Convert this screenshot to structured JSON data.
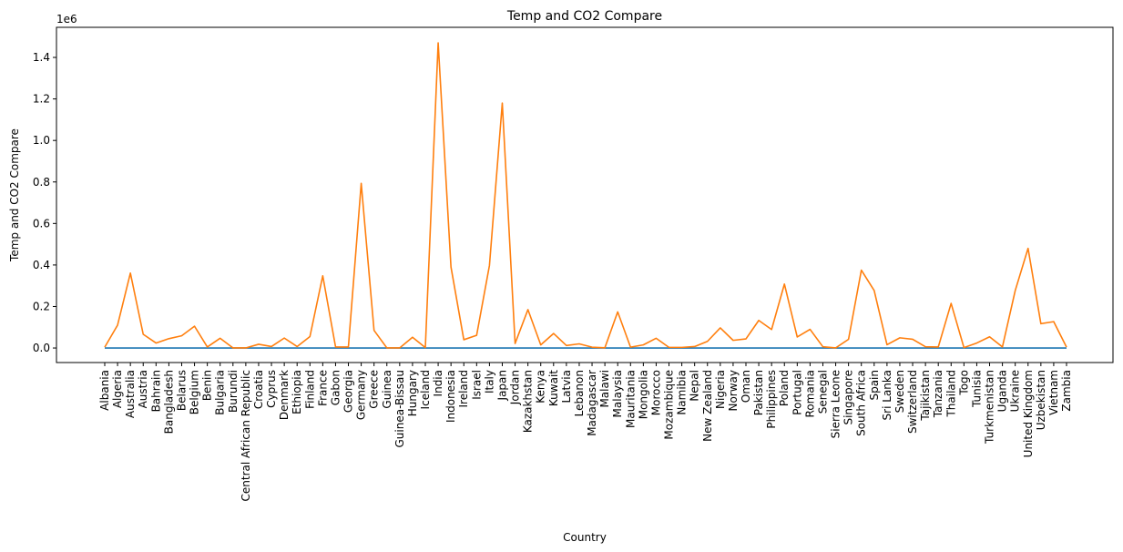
{
  "chart_data": {
    "type": "line",
    "title": "Temp and CO2 Compare",
    "xlabel": "Country",
    "ylabel": "Temp and CO2 Compare",
    "y_offset_label": "1e6",
    "ylim": [
      -70000,
      1545000
    ],
    "yticks": [
      0.0,
      0.2,
      0.4,
      0.6,
      0.8,
      1.0,
      1.2,
      1.4
    ],
    "ytick_labels": [
      "0.0",
      "0.2",
      "0.4",
      "0.6",
      "0.8",
      "1.0",
      "1.2",
      "1.4"
    ],
    "grid": false,
    "categories": [
      "Albania",
      "Algeria",
      "Australia",
      "Austria",
      "Bahrain",
      "Bangladesh",
      "Belarus",
      "Belgium",
      "Benin",
      "Bulgaria",
      "Burundi",
      "Central African Republic",
      "Croatia",
      "Cyprus",
      "Denmark",
      "Ethiopia",
      "Finland",
      "France",
      "Gabon",
      "Georgia",
      "Germany",
      "Greece",
      "Guinea",
      "Guinea-Bissau",
      "Hungary",
      "Iceland",
      "India",
      "Indonesia",
      "Ireland",
      "Israel",
      "Italy",
      "Japan",
      "Jordan",
      "Kazakhstan",
      "Kenya",
      "Kuwait",
      "Latvia",
      "Lebanon",
      "Madagascar",
      "Malawi",
      "Malaysia",
      "Mauritania",
      "Mongolia",
      "Morocco",
      "Mozambique",
      "Namibia",
      "Nepal",
      "New Zealand",
      "Nigeria",
      "Norway",
      "Oman",
      "Pakistan",
      "Philippines",
      "Poland",
      "Portugal",
      "Romania",
      "Senegal",
      "Sierra Leone",
      "Singapore",
      "South Africa",
      "Spain",
      "Sri Lanka",
      "Sweden",
      "Switzerland",
      "Tajikistan",
      "Tanzania",
      "Thailand",
      "Togo",
      "Tunisia",
      "Turkmenistan",
      "Uganda",
      "Ukraine",
      "United Kingdom",
      "Uzbekistan",
      "Vietnam",
      "Zambia"
    ],
    "series": [
      {
        "color": "#1f77b4",
        "values": [
          12,
          22,
          21,
          10,
          27,
          25,
          7,
          10,
          27,
          11,
          21,
          25,
          12,
          19,
          8,
          23,
          3,
          11,
          25,
          13,
          9,
          16,
          26,
          26,
          10,
          2,
          25,
          26,
          10,
          20,
          13,
          15,
          18,
          6,
          24,
          26,
          6,
          17,
          23,
          21,
          27,
          26,
          0,
          17,
          24,
          20,
          19,
          12,
          27,
          2,
          26,
          20,
          27,
          8,
          15,
          10,
          28,
          26,
          27,
          17,
          14,
          27,
          6,
          6,
          14,
          24,
          27,
          27,
          19,
          15,
          22,
          8,
          9,
          13,
          26,
          21
        ]
      },
      {
        "color": "#ff7f0e",
        "values": [
          4000,
          110000,
          361000,
          66000,
          24000,
          45000,
          59000,
          105000,
          5000,
          47000,
          500,
          300,
          18000,
          7000,
          48000,
          7000,
          55000,
          348000,
          5000,
          5000,
          793000,
          85000,
          500,
          500,
          52000,
          2000,
          1470000,
          390000,
          40000,
          61000,
          398000,
          1180000,
          22000,
          185000,
          15000,
          70000,
          12000,
          20000,
          4000,
          1000,
          174000,
          4000,
          15000,
          47000,
          3000,
          3000,
          7000,
          32000,
          97000,
          37000,
          44000,
          133000,
          89000,
          308000,
          53000,
          90000,
          6000,
          500,
          42000,
          375000,
          277000,
          16000,
          49000,
          42000,
          6000,
          5000,
          215000,
          2000,
          24000,
          54000,
          5000,
          277000,
          480000,
          117000,
          127000,
          4000
        ]
      }
    ]
  }
}
